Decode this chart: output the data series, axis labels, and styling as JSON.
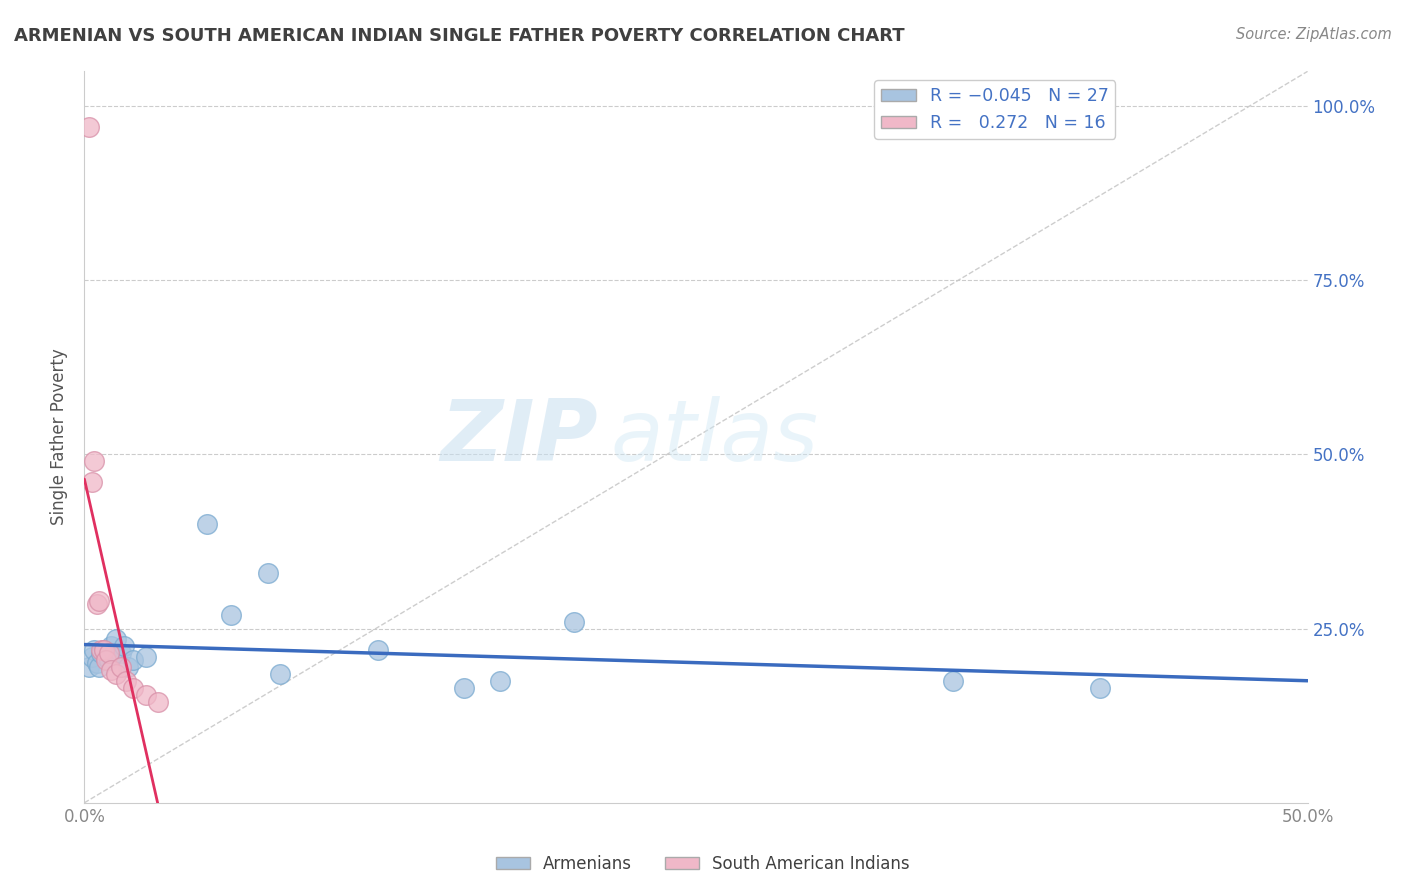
{
  "title": "ARMENIAN VS SOUTH AMERICAN INDIAN SINGLE FATHER POVERTY CORRELATION CHART",
  "source": "Source: ZipAtlas.com",
  "ylabel": "Single Father Poverty",
  "xlim": [
    0.0,
    0.5
  ],
  "ylim": [
    0.0,
    1.05
  ],
  "armenian_R": -0.045,
  "armenian_N": 27,
  "sai_R": 0.272,
  "sai_N": 16,
  "armenian_color": "#a8c4e0",
  "armenian_edge_color": "#7aaad0",
  "armenian_line_color": "#3a6bbf",
  "sai_color": "#f0b8c8",
  "sai_edge_color": "#d890a8",
  "sai_line_color": "#e03060",
  "sai_dash_color": "#e8a0b0",
  "watermark_zip": "ZIP",
  "watermark_atlas": "atlas",
  "legend_label_armenians": "Armenians",
  "legend_label_sai": "South American Indians",
  "armenian_x": [
    0.002,
    0.003,
    0.004,
    0.005,
    0.006,
    0.007,
    0.008,
    0.009,
    0.01,
    0.011,
    0.012,
    0.013,
    0.015,
    0.016,
    0.018,
    0.02,
    0.025,
    0.05,
    0.06,
    0.075,
    0.08,
    0.12,
    0.155,
    0.17,
    0.2,
    0.355,
    0.415
  ],
  "armenian_y": [
    0.195,
    0.21,
    0.22,
    0.2,
    0.195,
    0.215,
    0.22,
    0.21,
    0.205,
    0.225,
    0.215,
    0.235,
    0.215,
    0.225,
    0.195,
    0.205,
    0.21,
    0.4,
    0.27,
    0.33,
    0.185,
    0.22,
    0.165,
    0.175,
    0.26,
    0.175,
    0.165
  ],
  "sai_x": [
    0.002,
    0.003,
    0.004,
    0.005,
    0.006,
    0.007,
    0.008,
    0.009,
    0.01,
    0.011,
    0.013,
    0.015,
    0.017,
    0.02,
    0.025,
    0.03
  ],
  "sai_y": [
    0.97,
    0.46,
    0.49,
    0.285,
    0.29,
    0.22,
    0.22,
    0.205,
    0.215,
    0.19,
    0.185,
    0.195,
    0.175,
    0.165,
    0.155,
    0.145
  ],
  "background_color": "#ffffff",
  "grid_color": "#cccccc",
  "title_color": "#404040",
  "right_ytick_color": "#4472c4",
  "tick_color": "#888888"
}
